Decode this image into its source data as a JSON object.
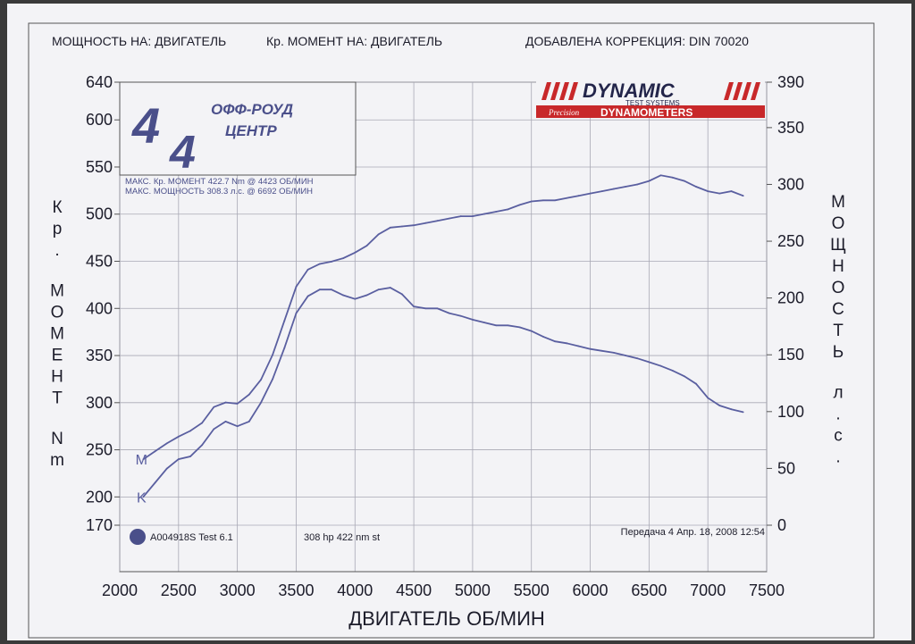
{
  "header": {
    "power_on": "МОЩНОСТЬ НА: ДВИГАТЕЛЬ",
    "torque_on": "Кр. МОМЕНТ НА: ДВИГАТЕЛЬ",
    "correction": "ДОБАВЛЕНА КОРРЕКЦИЯ: DIN 70020"
  },
  "logo_left": {
    "line1": "ОФФ-РОУД",
    "line2": "ЦЕНТР"
  },
  "logo_right": {
    "title": "DYNAMIC",
    "subtitle": "TEST SYSTEMS",
    "line2a": "Precision",
    "line2b": "DYNAMOMETERS"
  },
  "max_info": {
    "torque": "МАКС. Кр. МОМЕНТ 422.7 Nm @ 4423 ОБ/МИН",
    "power": "МАКС. МОЩНОСТЬ 308.3 л.с. @ 6692 ОБ/МИН"
  },
  "footer": {
    "test_id": "A004918S Test 6.1",
    "summary": "308 hp 422 nm st",
    "gear_date": "Передача 4 Апр. 18, 2008 12:54"
  },
  "colors": {
    "trace": "#5a5fa0",
    "grid": "#a8a8b4",
    "ink": "#1c1c2a",
    "dynamic_red": "#c8282a"
  },
  "chart_data": {
    "type": "line",
    "xlabel": "ДВИГАТЕЛЬ ОБ/МИН",
    "ylabel_left": "Кр. МОМЕНТ Nm",
    "ylabel_right": "МОЩНОСТЬ л.с.",
    "xlim": [
      2000,
      7500
    ],
    "ylim_left": [
      170,
      640
    ],
    "ylim_right": [
      0,
      390
    ],
    "x_ticks": [
      "2000",
      "2500",
      "3000",
      "3500",
      "4000",
      "4500",
      "5000",
      "5500",
      "6000",
      "6500",
      "7000",
      "7500"
    ],
    "y_left_ticks": [
      "640",
      "600",
      "550",
      "500",
      "450",
      "400",
      "350",
      "300",
      "250",
      "200",
      "170"
    ],
    "y_right_ticks": [
      "390",
      "350",
      "300",
      "250",
      "200",
      "150",
      "100",
      "50",
      "0"
    ],
    "grid": true,
    "series": [
      {
        "name": "Кр. МОМЕНТ",
        "axis": "left",
        "marker": "K",
        "x": [
          2200,
          2300,
          2400,
          2500,
          2600,
          2700,
          2800,
          2900,
          3000,
          3100,
          3200,
          3300,
          3400,
          3500,
          3600,
          3700,
          3800,
          3900,
          4000,
          4100,
          4200,
          4300,
          4400,
          4500,
          4600,
          4700,
          4800,
          4900,
          5000,
          5100,
          5200,
          5300,
          5400,
          5500,
          5600,
          5700,
          5800,
          5900,
          6000,
          6100,
          6200,
          6300,
          6400,
          6500,
          6600,
          6700,
          6800,
          6900,
          7000,
          7100,
          7200,
          7300
        ],
        "y": [
          200,
          215,
          230,
          240,
          243,
          255,
          272,
          280,
          275,
          280,
          300,
          325,
          358,
          395,
          413,
          420,
          420,
          414,
          410,
          414,
          420,
          422,
          415,
          402,
          400,
          400,
          395,
          392,
          388,
          385,
          382,
          382,
          380,
          376,
          370,
          365,
          363,
          360,
          357,
          355,
          353,
          350,
          347,
          343,
          339,
          334,
          328,
          320,
          305,
          297,
          293,
          290
        ]
      },
      {
        "name": "МОЩНОСТЬ",
        "axis": "right",
        "marker": "M",
        "x": [
          2200,
          2300,
          2400,
          2500,
          2600,
          2700,
          2800,
          2900,
          3000,
          3100,
          3200,
          3300,
          3400,
          3500,
          3600,
          3700,
          3800,
          3900,
          4000,
          4100,
          4200,
          4300,
          4400,
          4500,
          4600,
          4700,
          4800,
          4900,
          5000,
          5100,
          5200,
          5300,
          5400,
          5500,
          5600,
          5700,
          5800,
          5900,
          6000,
          6100,
          6200,
          6300,
          6400,
          6500,
          6600,
          6700,
          6800,
          6900,
          7000,
          7100,
          7200,
          7300
        ],
        "y": [
          58,
          65,
          72,
          78,
          83,
          90,
          104,
          108,
          107,
          115,
          128,
          150,
          180,
          210,
          225,
          230,
          232,
          235,
          240,
          246,
          256,
          262,
          263,
          264,
          266,
          268,
          270,
          272,
          272,
          274,
          276,
          278,
          282,
          285,
          286,
          286,
          288,
          290,
          292,
          294,
          296,
          298,
          300,
          303,
          308,
          306,
          303,
          298,
          294,
          292,
          294,
          290
        ]
      }
    ]
  }
}
